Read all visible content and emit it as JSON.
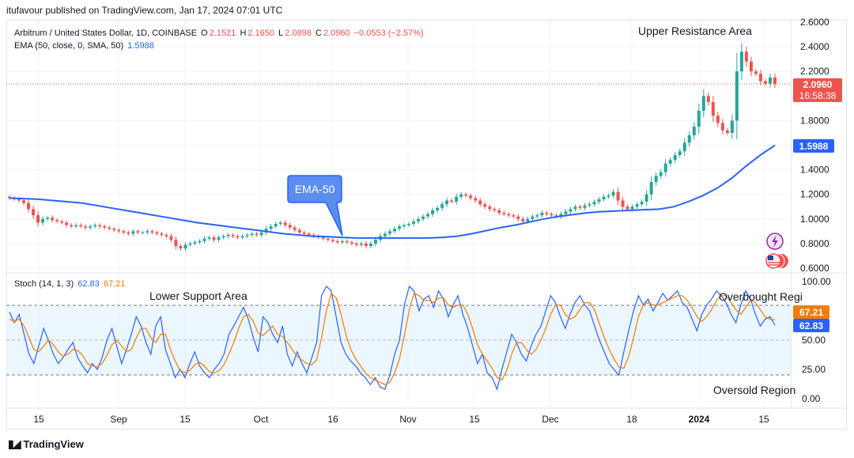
{
  "header": {
    "published": "itufavour published on TradingView.com, Jan 17, 2024 07:01 UTC"
  },
  "symbol": {
    "name": "Arbitrum / United States Dollar, 1D, COINBASE",
    "o_label": "O",
    "o": "2.1521",
    "h_label": "H",
    "h": "2.1650",
    "l_label": "L",
    "l": "2.0898",
    "c_label": "C",
    "c": "2.0960",
    "change": "−0.0553 (−2.57%)"
  },
  "ema": {
    "label": "EMA (50, close, 0, SMA, 50)",
    "value": "1.5988"
  },
  "stoch": {
    "label": "Stoch (14, 1, 3)",
    "k": "62.83",
    "d": "67.21"
  },
  "annotations": {
    "upper": "Upper Resistance Area",
    "lower": "Lower Support Area",
    "overbought": "Overbought Regi",
    "oversold": "Oversold Region",
    "ema_callout": "EMA-50"
  },
  "price_tags": {
    "last": "2.0960",
    "countdown": "16:58:38",
    "ema": "1.5988"
  },
  "stoch_tags": {
    "d": "67.21",
    "k": "62.83"
  },
  "colors": {
    "up": "#26a69a",
    "down": "#ef5350",
    "ema": "#2962ff",
    "k": "#2962ff",
    "d": "#f57c00",
    "band": "#e3f2fd"
  },
  "footer": {
    "brand": "TradingView"
  },
  "chart_data": [
    {
      "type": "candlestick",
      "title": "Arbitrum / United States Dollar, 1D, COINBASE",
      "y_ticks": [
        "2.6000",
        "2.4000",
        "2.2000",
        "1.8000",
        "1.6000",
        "1.4000",
        "1.2000",
        "1.0000",
        "0.8000",
        "0.6000"
      ],
      "x_ticks": [
        "15",
        "Sep",
        "15",
        "Oct",
        "16",
        "Nov",
        "15",
        "Dec",
        "18",
        "2024",
        "15"
      ],
      "ylim": [
        0.6,
        2.6
      ],
      "close": [
        1.17,
        1.16,
        1.15,
        1.13,
        1.08,
        1.03,
        0.97,
        1.0,
        1.01,
        0.99,
        0.98,
        0.97,
        0.95,
        0.94,
        0.95,
        0.94,
        0.93,
        0.94,
        0.95,
        0.94,
        0.93,
        0.92,
        0.91,
        0.9,
        0.89,
        0.88,
        0.9,
        0.89,
        0.89,
        0.9,
        0.89,
        0.88,
        0.87,
        0.86,
        0.83,
        0.78,
        0.76,
        0.79,
        0.8,
        0.81,
        0.82,
        0.84,
        0.85,
        0.83,
        0.85,
        0.86,
        0.87,
        0.86,
        0.85,
        0.86,
        0.87,
        0.88,
        0.87,
        0.89,
        0.92,
        0.94,
        0.96,
        0.97,
        0.95,
        0.93,
        0.91,
        0.89,
        0.88,
        0.87,
        0.86,
        0.85,
        0.84,
        0.83,
        0.82,
        0.81,
        0.82,
        0.81,
        0.8,
        0.79,
        0.8,
        0.78,
        0.8,
        0.83,
        0.86,
        0.88,
        0.9,
        0.92,
        0.94,
        0.95,
        0.96,
        0.98,
        1.0,
        1.02,
        1.04,
        1.07,
        1.09,
        1.12,
        1.15,
        1.14,
        1.18,
        1.2,
        1.19,
        1.17,
        1.15,
        1.12,
        1.1,
        1.08,
        1.07,
        1.05,
        1.04,
        1.03,
        1.02,
        1.0,
        0.98,
        1.0,
        1.02,
        1.03,
        1.05,
        1.04,
        1.03,
        1.02,
        1.04,
        1.06,
        1.08,
        1.1,
        1.09,
        1.11,
        1.12,
        1.14,
        1.16,
        1.18,
        1.19,
        1.22,
        1.15,
        1.1,
        1.08,
        1.1,
        1.12,
        1.14,
        1.2,
        1.3,
        1.35,
        1.38,
        1.45,
        1.48,
        1.52,
        1.55,
        1.62,
        1.68,
        1.75,
        1.88,
        2.0,
        1.95,
        1.84,
        1.78,
        1.72,
        1.7,
        1.8,
        2.2,
        2.36,
        2.28,
        2.2,
        2.18,
        2.12,
        2.1,
        2.15,
        2.096
      ],
      "ema50": [
        1.17,
        1.165,
        1.16,
        1.15,
        1.14,
        1.13,
        1.11,
        1.09,
        1.07,
        1.05,
        1.03,
        1.01,
        0.99,
        0.97,
        0.955,
        0.94,
        0.925,
        0.91,
        0.895,
        0.88,
        0.87,
        0.86,
        0.855,
        0.85,
        0.845,
        0.845,
        0.845,
        0.845,
        0.845,
        0.845,
        0.85,
        0.86,
        0.88,
        0.905,
        0.93,
        0.95,
        0.975,
        1.0,
        1.02,
        1.035,
        1.05,
        1.06,
        1.065,
        1.07,
        1.075,
        1.08,
        1.1,
        1.14,
        1.19,
        1.25,
        1.33,
        1.43,
        1.52,
        1.5988
      ],
      "last_price": 2.096,
      "ema_last": 1.5988
    },
    {
      "type": "line",
      "title": "Stoch (14, 1, 3)",
      "y_ticks": [
        "100.00",
        "75.00",
        "50.00",
        "25.00",
        "0.00"
      ],
      "ylim": [
        0,
        100
      ],
      "bands": [
        20,
        50,
        80
      ],
      "series": [
        {
          "name": "%K",
          "values": [
            74,
            65,
            72,
            55,
            38,
            30,
            45,
            60,
            50,
            38,
            30,
            35,
            42,
            48,
            35,
            28,
            22,
            30,
            25,
            35,
            50,
            60,
            45,
            30,
            42,
            55,
            70,
            62,
            48,
            38,
            62,
            70,
            42,
            30,
            18,
            25,
            18,
            30,
            40,
            28,
            22,
            18,
            25,
            30,
            38,
            55,
            62,
            70,
            78,
            68,
            52,
            40,
            70,
            65,
            55,
            48,
            62,
            38,
            28,
            40,
            30,
            22,
            35,
            48,
            88,
            96,
            92,
            70,
            48,
            38,
            32,
            28,
            22,
            18,
            12,
            18,
            10,
            8,
            20,
            38,
            50,
            80,
            96,
            92,
            75,
            85,
            88,
            78,
            92,
            85,
            70,
            80,
            88,
            72,
            60,
            45,
            30,
            38,
            22,
            18,
            8,
            25,
            40,
            55,
            48,
            38,
            32,
            45,
            55,
            62,
            75,
            88,
            82,
            70,
            60,
            72,
            82,
            88,
            80,
            75,
            62,
            50,
            40,
            30,
            25,
            20,
            40,
            58,
            75,
            88,
            80,
            85,
            75,
            82,
            90,
            84,
            88,
            92,
            82,
            78,
            68,
            58,
            72,
            80,
            85,
            92,
            88,
            82,
            72,
            65,
            80,
            92,
            85,
            72,
            62,
            68,
            70,
            62.83
          ]
        },
        {
          "name": "%D",
          "values": [
            68,
            66,
            68,
            62,
            52,
            42,
            40,
            45,
            50,
            46,
            40,
            36,
            38,
            42,
            41,
            37,
            30,
            28,
            27,
            30,
            37,
            46,
            50,
            45,
            40,
            42,
            52,
            60,
            60,
            52,
            48,
            55,
            55,
            42,
            32,
            24,
            22,
            24,
            29,
            31,
            28,
            23,
            22,
            24,
            29,
            38,
            48,
            60,
            70,
            72,
            66,
            56,
            54,
            58,
            62,
            55,
            53,
            48,
            42,
            36,
            33,
            30,
            29,
            33,
            52,
            75,
            90,
            86,
            72,
            55,
            42,
            34,
            28,
            22,
            18,
            16,
            14,
            12,
            14,
            22,
            34,
            54,
            76,
            90,
            88,
            84,
            84,
            82,
            86,
            86,
            80,
            78,
            80,
            80,
            72,
            60,
            46,
            38,
            32,
            26,
            18,
            16,
            24,
            38,
            48,
            48,
            42,
            38,
            42,
            50,
            60,
            72,
            80,
            80,
            72,
            68,
            70,
            76,
            82,
            82,
            76,
            64,
            52,
            42,
            34,
            27,
            26,
            36,
            52,
            70,
            80,
            82,
            80,
            80,
            82,
            84,
            86,
            88,
            88,
            84,
            78,
            70,
            66,
            70,
            76,
            84,
            88,
            88,
            82,
            76,
            72,
            78,
            84,
            82,
            76,
            70,
            68,
            67.21
          ]
        }
      ]
    }
  ]
}
